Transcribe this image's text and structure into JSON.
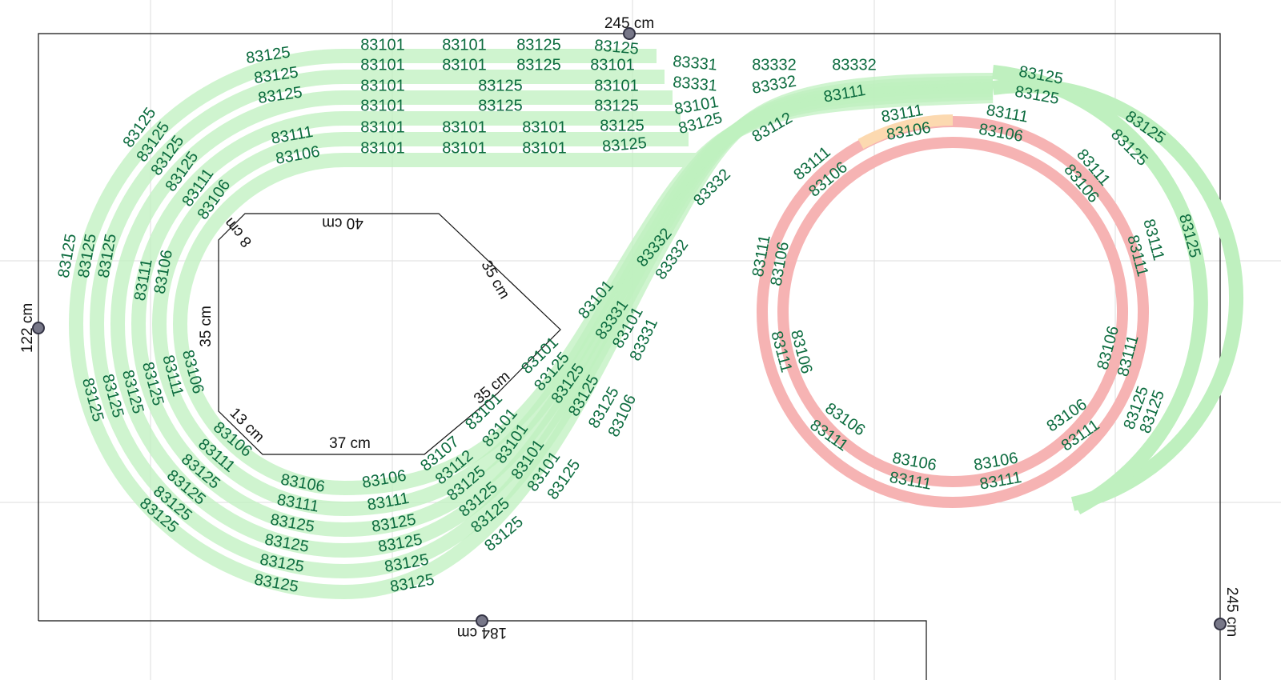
{
  "dimensions": [
    "245 cm",
    "122 cm",
    "184 cm",
    "245 cm",
    "40 cm",
    "8 cm",
    "35 cm",
    "35 cm",
    "35 cm",
    "13 cm",
    "37 cm"
  ],
  "tracks": [
    "83125",
    "83125",
    "83125",
    "83101",
    "83101",
    "83125",
    "83125",
    "83101",
    "83101",
    "83125",
    "83101",
    "83101",
    "83125",
    "83101",
    "83101",
    "83125",
    "83125",
    "83101",
    "83101",
    "83101",
    "83125",
    "83101",
    "83101",
    "83101",
    "83125",
    "83111",
    "83106",
    "83331",
    "83331",
    "83101",
    "83125",
    "83332",
    "83332",
    "83332",
    "83111",
    "83112",
    "83332",
    "83332",
    "83332",
    "83101",
    "83331",
    "83101",
    "83331",
    "83101",
    "83125",
    "83125",
    "83125",
    "83125",
    "83106",
    "83101",
    "83101",
    "83101",
    "83101",
    "83101",
    "83125",
    "83107",
    "83112",
    "83125",
    "83125",
    "83125",
    "83125",
    "83106",
    "83111",
    "83125",
    "83125",
    "83125",
    "83125",
    "83106",
    "83111",
    "83125",
    "83125",
    "83125",
    "83125",
    "83106",
    "83111",
    "83125",
    "83125",
    "83125",
    "83125",
    "83106",
    "83111",
    "83125",
    "83125",
    "83125",
    "83125",
    "83106",
    "83111",
    "83125",
    "83125",
    "83125",
    "83106",
    "83111",
    "83125",
    "83125",
    "83125",
    "83125",
    "83111",
    "83106",
    "83111",
    "83106",
    "83111",
    "83106",
    "83111",
    "83106",
    "83111",
    "83106",
    "83106",
    "83111",
    "83106",
    "83111",
    "83106",
    "83111",
    "83106",
    "83111",
    "83106",
    "83111",
    "83125",
    "83125",
    "83111",
    "83106",
    "83125",
    "83125",
    "83125",
    "83111",
    "83111",
    "83125",
    "83125"
  ]
}
